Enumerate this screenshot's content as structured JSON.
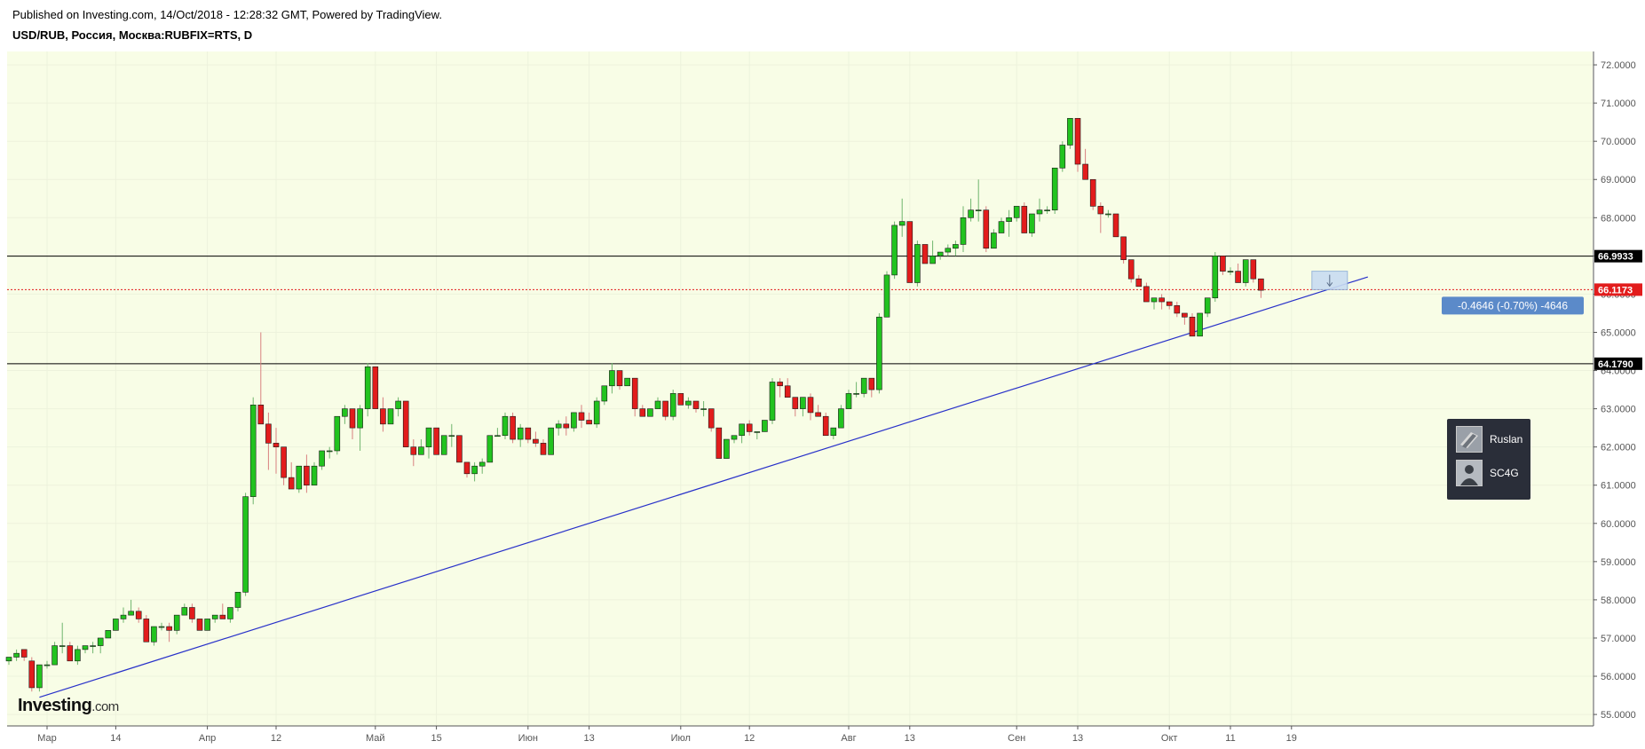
{
  "header": {
    "published": "Published on Investing.com, 14/Oct/2018 - 12:28:32 GMT, Powered by TradingView.",
    "symbol": "USD/RUB, Россия, Москва:RUBFIX=RTS, D"
  },
  "colors": {
    "background": "#f8fde6",
    "up": "#22c31f",
    "down": "#e21c1c",
    "trendline": "#2831c9",
    "current_price_line": "#e21c1c",
    "level_line": "#000000",
    "measure_box": "#5b8ac9"
  },
  "chart_data": {
    "type": "candlestick",
    "title": "",
    "ylim": [
      54.7,
      72.35
    ],
    "yticks": [
      "72.0000",
      "71.0000",
      "70.0000",
      "69.0000",
      "68.0000",
      "67.0000",
      "66.0000",
      "65.0000",
      "64.0000",
      "63.0000",
      "62.0000",
      "61.0000",
      "60.0000",
      "59.0000",
      "58.0000",
      "57.0000",
      "56.0000",
      "55.0000"
    ],
    "xticks": [
      {
        "label": "Мар",
        "i": 5
      },
      {
        "label": "14",
        "i": 14
      },
      {
        "label": "Апр",
        "i": 26
      },
      {
        "label": "12",
        "i": 35
      },
      {
        "label": "Май",
        "i": 48
      },
      {
        "label": "15",
        "i": 56
      },
      {
        "label": "Июн",
        "i": 68
      },
      {
        "label": "13",
        "i": 76
      },
      {
        "label": "Июл",
        "i": 88
      },
      {
        "label": "12",
        "i": 97
      },
      {
        "label": "Авг",
        "i": 110
      },
      {
        "label": "13",
        "i": 118
      },
      {
        "label": "Сен",
        "i": 132
      },
      {
        "label": "13",
        "i": 140
      },
      {
        "label": "Окт",
        "i": 152
      },
      {
        "label": "11",
        "i": 160
      },
      {
        "label": "19",
        "i": 168
      }
    ],
    "candles": [
      [
        56.4,
        56.5,
        56.3,
        56.5
      ],
      [
        56.5,
        56.7,
        56.4,
        56.6
      ],
      [
        56.7,
        56.7,
        56.4,
        56.5
      ],
      [
        56.4,
        56.5,
        55.6,
        55.7
      ],
      [
        55.7,
        56.3,
        55.6,
        56.3
      ],
      [
        56.3,
        56.4,
        56.2,
        56.3
      ],
      [
        56.3,
        56.9,
        56.3,
        56.8
      ],
      [
        56.8,
        57.4,
        56.6,
        56.8
      ],
      [
        56.8,
        56.9,
        56.4,
        56.4
      ],
      [
        56.4,
        56.8,
        56.3,
        56.7
      ],
      [
        56.7,
        56.8,
        56.6,
        56.8
      ],
      [
        56.8,
        56.9,
        56.6,
        56.8
      ],
      [
        56.8,
        57.0,
        56.6,
        57.0
      ],
      [
        57.0,
        57.2,
        57.0,
        57.2
      ],
      [
        57.2,
        57.5,
        57.2,
        57.5
      ],
      [
        57.5,
        57.8,
        57.4,
        57.6
      ],
      [
        57.6,
        58.0,
        57.6,
        57.7
      ],
      [
        57.7,
        57.8,
        57.4,
        57.5
      ],
      [
        57.5,
        57.6,
        56.9,
        56.9
      ],
      [
        56.9,
        57.3,
        56.8,
        57.3
      ],
      [
        57.3,
        57.4,
        57.2,
        57.3
      ],
      [
        57.3,
        57.4,
        56.9,
        57.2
      ],
      [
        57.2,
        57.6,
        57.1,
        57.6
      ],
      [
        57.6,
        57.9,
        57.6,
        57.8
      ],
      [
        57.8,
        57.9,
        57.4,
        57.5
      ],
      [
        57.5,
        57.5,
        57.2,
        57.2
      ],
      [
        57.2,
        57.5,
        57.2,
        57.5
      ],
      [
        57.5,
        57.6,
        57.4,
        57.6
      ],
      [
        57.6,
        57.9,
        57.5,
        57.5
      ],
      [
        57.5,
        57.8,
        57.4,
        57.8
      ],
      [
        57.8,
        58.2,
        57.7,
        58.2
      ],
      [
        58.2,
        60.8,
        58.1,
        60.7
      ],
      [
        60.7,
        63.3,
        60.5,
        63.1
      ],
      [
        63.1,
        65.0,
        62.6,
        62.6
      ],
      [
        62.6,
        62.9,
        61.4,
        62.1
      ],
      [
        62.1,
        62.5,
        61.3,
        62.0
      ],
      [
        62.0,
        62.0,
        61.0,
        61.2
      ],
      [
        61.2,
        61.6,
        60.9,
        60.9
      ],
      [
        60.9,
        61.5,
        60.8,
        61.5
      ],
      [
        61.5,
        61.8,
        60.8,
        61.0
      ],
      [
        61.0,
        61.6,
        61.0,
        61.5
      ],
      [
        61.5,
        61.9,
        61.4,
        61.9
      ],
      [
        61.9,
        62.0,
        61.7,
        61.9
      ],
      [
        61.9,
        62.8,
        61.8,
        62.8
      ],
      [
        62.8,
        63.1,
        62.6,
        63.0
      ],
      [
        63.0,
        63.0,
        62.2,
        62.5
      ],
      [
        62.5,
        63.1,
        61.9,
        63.0
      ],
      [
        63.0,
        64.2,
        62.8,
        64.1
      ],
      [
        64.1,
        64.1,
        63.0,
        63.0
      ],
      [
        63.0,
        63.3,
        62.4,
        62.6
      ],
      [
        62.6,
        63.0,
        62.6,
        63.0
      ],
      [
        63.0,
        63.3,
        62.8,
        63.2
      ],
      [
        63.2,
        63.2,
        62.0,
        62.0
      ],
      [
        62.0,
        62.2,
        61.5,
        61.8
      ],
      [
        61.8,
        62.2,
        61.8,
        62.0
      ],
      [
        62.0,
        62.5,
        61.7,
        62.5
      ],
      [
        62.5,
        62.5,
        61.8,
        61.8
      ],
      [
        61.8,
        62.3,
        61.8,
        62.3
      ],
      [
        62.3,
        62.6,
        62.0,
        62.3
      ],
      [
        62.3,
        62.3,
        61.7,
        61.6
      ],
      [
        61.6,
        61.6,
        61.2,
        61.3
      ],
      [
        61.3,
        61.6,
        61.1,
        61.5
      ],
      [
        61.5,
        61.7,
        61.3,
        61.6
      ],
      [
        61.6,
        62.3,
        61.6,
        62.3
      ],
      [
        62.3,
        62.5,
        62.3,
        62.3
      ],
      [
        62.3,
        62.9,
        62.2,
        62.8
      ],
      [
        62.8,
        62.9,
        62.1,
        62.2
      ],
      [
        62.2,
        62.6,
        62.0,
        62.5
      ],
      [
        62.5,
        62.5,
        62.1,
        62.2
      ],
      [
        62.2,
        62.4,
        62.0,
        62.1
      ],
      [
        62.1,
        62.2,
        61.8,
        61.8
      ],
      [
        61.8,
        62.5,
        61.8,
        62.5
      ],
      [
        62.5,
        62.7,
        62.3,
        62.6
      ],
      [
        62.6,
        62.8,
        62.3,
        62.5
      ],
      [
        62.5,
        62.9,
        62.4,
        62.9
      ],
      [
        62.9,
        63.1,
        62.5,
        62.7
      ],
      [
        62.7,
        62.9,
        62.6,
        62.6
      ],
      [
        62.6,
        63.3,
        62.5,
        63.2
      ],
      [
        63.2,
        63.6,
        63.1,
        63.6
      ],
      [
        63.6,
        64.2,
        63.4,
        64.0
      ],
      [
        64.0,
        64.0,
        63.5,
        63.6
      ],
      [
        63.6,
        63.8,
        63.6,
        63.8
      ],
      [
        63.8,
        63.8,
        62.8,
        63.0
      ],
      [
        63.0,
        63.1,
        62.8,
        62.8
      ],
      [
        62.8,
        63.0,
        62.8,
        63.0
      ],
      [
        63.0,
        63.3,
        63.0,
        63.2
      ],
      [
        63.2,
        63.2,
        62.7,
        62.8
      ],
      [
        62.8,
        63.5,
        62.7,
        63.4
      ],
      [
        63.4,
        63.4,
        63.1,
        63.1
      ],
      [
        63.1,
        63.3,
        63.0,
        63.2
      ],
      [
        63.2,
        63.2,
        62.9,
        63.0
      ],
      [
        63.0,
        63.2,
        62.8,
        63.0
      ],
      [
        63.0,
        63.0,
        62.4,
        62.5
      ],
      [
        62.5,
        62.5,
        61.7,
        61.7
      ],
      [
        61.7,
        62.2,
        61.7,
        62.2
      ],
      [
        62.2,
        62.3,
        62.1,
        62.3
      ],
      [
        62.3,
        62.6,
        62.1,
        62.6
      ],
      [
        62.6,
        62.7,
        62.3,
        62.4
      ],
      [
        62.4,
        62.4,
        62.2,
        62.4
      ],
      [
        62.4,
        62.7,
        62.4,
        62.7
      ],
      [
        62.7,
        63.8,
        62.6,
        63.7
      ],
      [
        63.7,
        63.8,
        63.3,
        63.6
      ],
      [
        63.6,
        63.8,
        63.3,
        63.3
      ],
      [
        63.3,
        63.3,
        62.8,
        63.0
      ],
      [
        63.0,
        63.3,
        62.8,
        63.3
      ],
      [
        63.3,
        63.4,
        62.7,
        62.9
      ],
      [
        62.9,
        63.1,
        62.8,
        62.8
      ],
      [
        62.8,
        62.9,
        62.4,
        62.3
      ],
      [
        62.3,
        62.5,
        62.2,
        62.5
      ],
      [
        62.5,
        63.1,
        62.5,
        63.0
      ],
      [
        63.0,
        63.5,
        63.0,
        63.4
      ],
      [
        63.4,
        63.7,
        63.3,
        63.4
      ],
      [
        63.4,
        63.8,
        63.3,
        63.8
      ],
      [
        63.8,
        63.8,
        63.3,
        63.5
      ],
      [
        63.5,
        65.5,
        63.4,
        65.4
      ],
      [
        65.4,
        66.6,
        65.4,
        66.5
      ],
      [
        66.5,
        67.9,
        66.4,
        67.8
      ],
      [
        67.8,
        68.5,
        67.5,
        67.9
      ],
      [
        67.9,
        67.9,
        66.3,
        66.3
      ],
      [
        66.3,
        67.4,
        66.2,
        67.3
      ],
      [
        67.3,
        67.3,
        66.8,
        66.8
      ],
      [
        66.8,
        67.4,
        66.8,
        67.0
      ],
      [
        67.0,
        67.1,
        66.9,
        67.1
      ],
      [
        67.1,
        67.3,
        67.0,
        67.2
      ],
      [
        67.2,
        67.4,
        67.0,
        67.3
      ],
      [
        67.3,
        68.3,
        67.1,
        68.0
      ],
      [
        68.0,
        68.5,
        67.9,
        68.2
      ],
      [
        68.2,
        69.0,
        67.9,
        68.2
      ],
      [
        68.2,
        68.3,
        67.1,
        67.2
      ],
      [
        67.2,
        67.7,
        67.2,
        67.6
      ],
      [
        67.6,
        68.0,
        67.6,
        67.9
      ],
      [
        67.9,
        68.2,
        67.5,
        68.0
      ],
      [
        68.0,
        68.3,
        67.9,
        68.3
      ],
      [
        68.3,
        68.4,
        67.6,
        67.6
      ],
      [
        67.6,
        68.1,
        67.5,
        68.1
      ],
      [
        68.1,
        68.5,
        67.9,
        68.2
      ],
      [
        68.2,
        68.3,
        68.1,
        68.2
      ],
      [
        68.2,
        69.3,
        68.1,
        69.3
      ],
      [
        69.3,
        70.0,
        69.2,
        69.9
      ],
      [
        69.9,
        70.6,
        69.8,
        70.6
      ],
      [
        70.6,
        70.6,
        69.2,
        69.4
      ],
      [
        69.4,
        69.8,
        69.0,
        69.0
      ],
      [
        69.0,
        69.0,
        68.2,
        68.3
      ],
      [
        68.3,
        68.4,
        67.6,
        68.1
      ],
      [
        68.1,
        68.2,
        68.0,
        68.1
      ],
      [
        68.1,
        68.1,
        67.5,
        67.5
      ],
      [
        67.5,
        67.5,
        66.8,
        66.9
      ],
      [
        66.9,
        66.9,
        66.3,
        66.4
      ],
      [
        66.4,
        66.5,
        66.3,
        66.2
      ],
      [
        66.2,
        66.3,
        65.9,
        65.8
      ],
      [
        65.8,
        65.9,
        65.6,
        65.9
      ],
      [
        65.9,
        66.0,
        65.6,
        65.8
      ],
      [
        65.8,
        65.8,
        65.6,
        65.7
      ],
      [
        65.7,
        65.8,
        65.4,
        65.5
      ],
      [
        65.5,
        65.5,
        65.2,
        65.4
      ],
      [
        65.4,
        65.5,
        64.9,
        64.9
      ],
      [
        64.9,
        65.4,
        64.9,
        65.5
      ],
      [
        65.5,
        65.9,
        65.4,
        65.9
      ],
      [
        65.9,
        67.1,
        65.8,
        67.0
      ],
      [
        67.0,
        67.0,
        66.5,
        66.6
      ],
      [
        66.6,
        66.7,
        66.5,
        66.6
      ],
      [
        66.6,
        66.8,
        66.3,
        66.3
      ],
      [
        66.3,
        66.9,
        66.2,
        66.9
      ],
      [
        66.9,
        66.9,
        66.3,
        66.4
      ],
      [
        66.4,
        66.4,
        65.9,
        66.1
      ]
    ],
    "hlines": [
      {
        "value": 66.9933,
        "label": "66.9933",
        "color": "#000000"
      },
      {
        "value": 64.179,
        "label": "64.1790",
        "color": "#000000"
      }
    ],
    "current_price": {
      "value": 66.1173,
      "label": "66.1173"
    },
    "trendline": {
      "from": {
        "i": 4,
        "v": 55.45
      },
      "to": {
        "i": 178,
        "v": 66.45
      }
    },
    "measure": {
      "label": "-0.4646 (-0.70%) -4646",
      "from_value": 66.6,
      "to_value": 66.1173
    }
  },
  "users": [
    {
      "name": "Ruslan",
      "avatar": "ruslan-avatar-icon"
    },
    {
      "name": "SC4G",
      "avatar": "sc4g-avatar-icon"
    }
  ],
  "logo": {
    "text": "Investing",
    "suffix": ".com"
  }
}
